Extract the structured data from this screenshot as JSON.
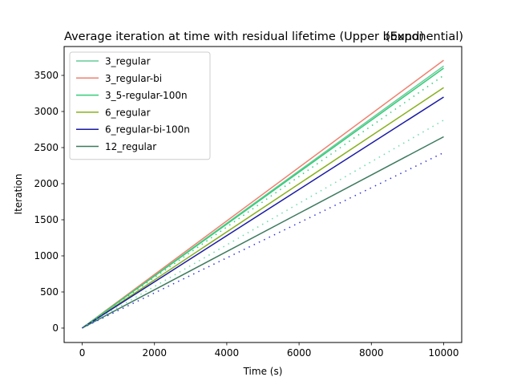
{
  "chart_data": {
    "type": "line",
    "title": "Average iteration at time with residual lifetime (Upper bound)",
    "title_overlay": "(Exponential)",
    "xlabel": "Time (s)",
    "ylabel": "Iteration",
    "xlim": [
      -500,
      10500
    ],
    "ylim": [
      -200,
      3900
    ],
    "x_ticks": [
      0,
      2000,
      4000,
      6000,
      8000,
      10000
    ],
    "y_ticks": [
      0,
      500,
      1000,
      1500,
      2000,
      2500,
      3000,
      3500
    ],
    "grid": false,
    "legend_position": "top-left",
    "series": [
      {
        "name": "3_regular",
        "color": "#66cc99",
        "style": "solid",
        "x": [
          0,
          10000
        ],
        "y": [
          0,
          3630
        ]
      },
      {
        "name": "3_regular-bi",
        "color": "#f08070",
        "style": "solid",
        "x": [
          0,
          10000
        ],
        "y": [
          0,
          3710
        ]
      },
      {
        "name": "3_5-regular-100n",
        "color": "#33cc77",
        "style": "solid",
        "x": [
          0,
          10000
        ],
        "y": [
          0,
          3600
        ]
      },
      {
        "name": "6_regular",
        "color": "#88b01e",
        "style": "solid",
        "x": [
          0,
          10000
        ],
        "y": [
          0,
          3330
        ]
      },
      {
        "name": "6_regular-bi-100n",
        "color": "#1a1aa6",
        "style": "solid",
        "x": [
          0,
          10000
        ],
        "y": [
          0,
          3200
        ]
      },
      {
        "name": "12_regular",
        "color": "#3c7a5e",
        "style": "solid",
        "x": [
          0,
          10000
        ],
        "y": [
          0,
          2650
        ]
      },
      {
        "color": "#33cc77",
        "style": "dotted",
        "x": [
          0,
          10000
        ],
        "y": [
          0,
          3500
        ]
      },
      {
        "color": "#66ddaa",
        "style": "dotted",
        "x": [
          0,
          10000
        ],
        "y": [
          0,
          2880
        ]
      },
      {
        "color": "#3333dd",
        "style": "dotted",
        "x": [
          0,
          10000
        ],
        "y": [
          0,
          2430
        ]
      }
    ]
  }
}
